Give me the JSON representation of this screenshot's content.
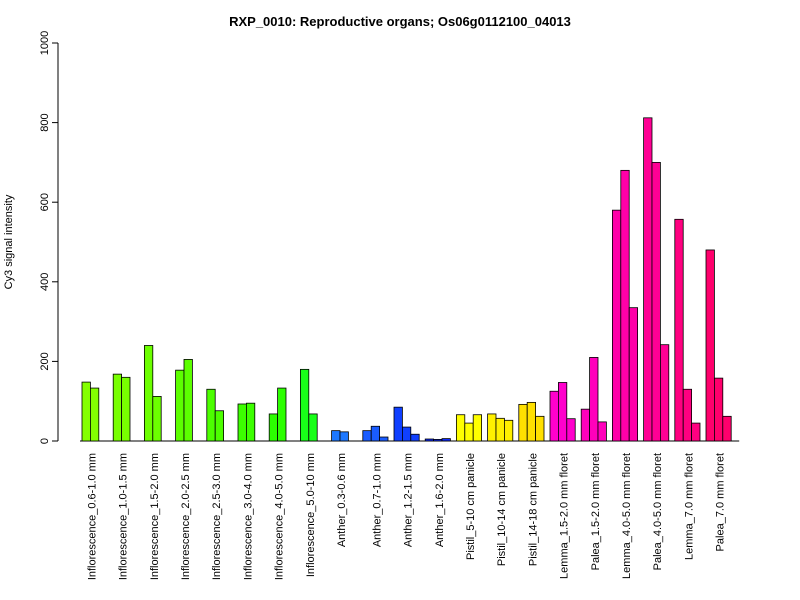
{
  "chart_data": {
    "type": "bar",
    "title": "RXP_0010: Reproductive organs; Os06g0112100_04013",
    "xlabel": "",
    "ylabel": "Cy3 signal intensity",
    "ylim": [
      0,
      1000
    ],
    "yticks": [
      "0",
      "200",
      "400",
      "600",
      "800",
      "1000"
    ],
    "grid": false,
    "legend": "none",
    "groups": [
      {
        "label": "Inflorescence_0.6-1.0 mm",
        "color": "#84ff00",
        "values": [
          148,
          133
        ]
      },
      {
        "label": "Inflorescence_1.0-1.5 mm",
        "color": "#78ff00",
        "values": [
          168,
          160
        ]
      },
      {
        "label": "Inflorescence_1.5-2.0 mm",
        "color": "#6cff00",
        "values": [
          240,
          112
        ]
      },
      {
        "label": "Inflorescence_2.0-2.5 mm",
        "color": "#5cff00",
        "values": [
          178,
          205
        ]
      },
      {
        "label": "Inflorescence_2.5-3.0 mm",
        "color": "#4cff00",
        "values": [
          130,
          76
        ]
      },
      {
        "label": "Inflorescence_3.0-4.0 mm",
        "color": "#3cff00",
        "values": [
          93,
          95
        ]
      },
      {
        "label": "Inflorescence_4.0-5.0 mm",
        "color": "#2cff00",
        "values": [
          68,
          133
        ]
      },
      {
        "label": "Inflorescence_5.0-10 mm",
        "color": "#18ff18",
        "values": [
          180,
          68
        ]
      },
      {
        "label": "Anther_0.3-0.6 mm",
        "color": "#1e78ff",
        "values": [
          26,
          23
        ]
      },
      {
        "label": "Anther_0.7-1.0 mm",
        "color": "#1a5cff",
        "values": [
          26,
          37,
          10
        ]
      },
      {
        "label": "Anther_1.2-1.5 mm",
        "color": "#1040ff",
        "values": [
          85,
          35,
          17
        ]
      },
      {
        "label": "Anther_1.6-2.0 mm",
        "color": "#0c28ff",
        "values": [
          5,
          4,
          6
        ]
      },
      {
        "label": "Pistil_5-10 cm panicle",
        "color": "#ffff00",
        "values": [
          66,
          45,
          66
        ]
      },
      {
        "label": "Pistil_10-14 cm panicle",
        "color": "#fff000",
        "values": [
          68,
          57,
          52
        ]
      },
      {
        "label": "Pistil_14-18 cm panicle",
        "color": "#ffe000",
        "values": [
          92,
          97,
          62
        ]
      },
      {
        "label": "Lemma_1.5-2.0 mm floret",
        "color": "#ff00cc",
        "values": [
          125,
          147,
          56
        ]
      },
      {
        "label": "Palea_1.5-2.0 mm floret",
        "color": "#ff00bb",
        "values": [
          80,
          210,
          48
        ]
      },
      {
        "label": "Lemma_4.0-5.0 mm floret",
        "color": "#ff00a8",
        "values": [
          580,
          680,
          335
        ]
      },
      {
        "label": "Palea_4.0-5.0 mm floret",
        "color": "#ff0094",
        "values": [
          812,
          700,
          242
        ]
      },
      {
        "label": "Lemma_7.0 mm floret",
        "color": "#ff0080",
        "values": [
          557,
          130,
          45
        ]
      },
      {
        "label": "Palea_7.0 mm floret",
        "color": "#ff006c",
        "values": [
          480,
          158,
          62
        ]
      }
    ]
  }
}
